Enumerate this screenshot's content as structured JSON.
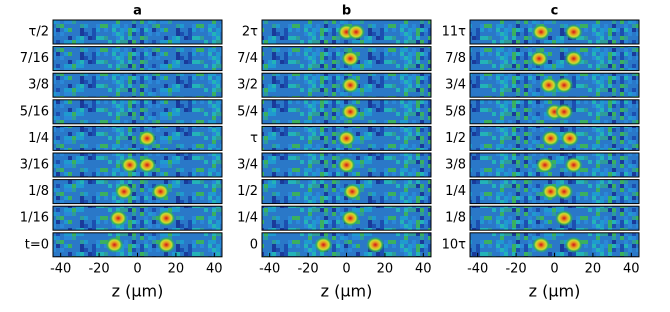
{
  "chart_data": [
    {
      "type": "strip-heatmap",
      "title": "a",
      "row_labels": [
        "τ/2",
        "7/16",
        "3/8",
        "5/16",
        "1/4",
        "3/16",
        "1/8",
        "1/16",
        "t=0"
      ],
      "peaks": [
        [],
        [],
        [],
        [],
        [
          5
        ],
        [
          -4,
          5
        ],
        [
          -7,
          12
        ],
        [
          -10,
          15
        ],
        [
          -12,
          15
        ]
      ],
      "xlim": [
        -44,
        44
      ],
      "xticks": [
        -40,
        -20,
        0,
        20,
        40
      ],
      "xlabel": "z (μm)"
    },
    {
      "type": "strip-heatmap",
      "title": "b",
      "row_labels": [
        "2τ",
        "7/4",
        "3/2",
        "5/4",
        "τ",
        "3/4",
        "1/2",
        "1/4",
        "0"
      ],
      "peaks": [
        [
          0,
          5
        ],
        [
          2
        ],
        [
          2
        ],
        [
          2
        ],
        [
          0
        ],
        [
          0
        ],
        [
          3
        ],
        [
          2
        ],
        [
          -12,
          15
        ]
      ],
      "xlim": [
        -44,
        44
      ],
      "xticks": [
        -40,
        -20,
        0,
        20,
        40
      ],
      "xlabel": "z (μm)"
    },
    {
      "type": "strip-heatmap",
      "title": "c",
      "row_labels": [
        "11τ",
        "7/8",
        "3/4",
        "5/8",
        "1/2",
        "3/8",
        "1/4",
        "1/8",
        "10τ"
      ],
      "peaks": [
        [
          -7,
          10
        ],
        [
          -8,
          10
        ],
        [
          -3,
          5
        ],
        [
          0,
          5
        ],
        [
          -2,
          8
        ],
        [
          -5,
          10
        ],
        [
          -2,
          5
        ],
        [
          5
        ],
        [
          -7,
          10
        ]
      ],
      "xlim": [
        -44,
        44
      ],
      "xticks": [
        -40,
        -20,
        0,
        20,
        40
      ],
      "xlabel": "z (μm)"
    }
  ]
}
